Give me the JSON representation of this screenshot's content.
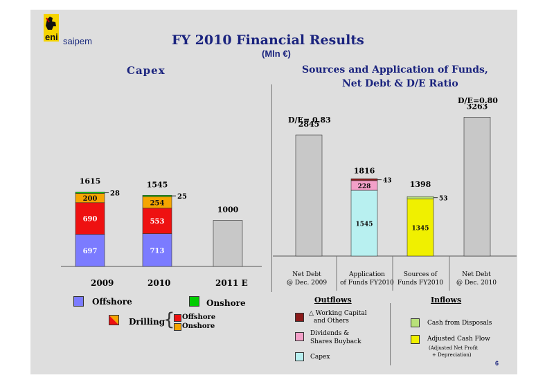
{
  "logo": {
    "brand": "eni",
    "sub": "saipem"
  },
  "slide": {
    "title": "FY 2010 Financial Results",
    "subtitle": "(Mln €)",
    "page_number": "6"
  },
  "colors": {
    "offshore_eng": "#7b7bff",
    "onshore_eng": "#00cc00",
    "drilling_offshore": "#ee1111",
    "drilling_onshore": "#f5a500",
    "grey_bar": "#c8c8c8",
    "working_capital": "#8b1a1a",
    "dividends": "#f3a0c8",
    "capex": "#b8f0f0",
    "cash_disposals": "#b8e07a",
    "cash_flow": "#f0f000",
    "title": "#1a237e"
  },
  "left": {
    "heading": "Capex",
    "legend": {
      "offshore": "Offshore",
      "onshore": "Onshore",
      "drilling": "Drilling",
      "drilling_offshore": "Offshore",
      "drilling_onshore": "Onshore"
    }
  },
  "right": {
    "heading_line1": "Sources and Application of Funds,",
    "heading_line2": "Net Debt & D/E Ratio",
    "ratio_2009": "D/E= 0.83",
    "ratio_2010": "D/E=0.80",
    "outflows_title": "Outflows",
    "inflows_title": "Inflows",
    "outflows": {
      "working_capital": "△ Working Capital",
      "working_capital_2": "and Others",
      "dividends": "Dividends &",
      "dividends_2": "Shares Buyback",
      "capex": "Capex"
    },
    "inflows": {
      "disposals": "Cash from Disposals",
      "cash_flow": "Adjusted Cash Flow",
      "cash_flow_note_1": "(Adjusted Net Profit",
      "cash_flow_note_2": "+ Depreciation)"
    }
  },
  "chart_data": [
    {
      "type": "bar",
      "title": "Capex",
      "categories": [
        "2009",
        "2010",
        "2011 E"
      ],
      "totals": [
        1615,
        1545,
        1000
      ],
      "series": [
        {
          "name": "Offshore",
          "values": [
            697,
            713,
            null
          ]
        },
        {
          "name": "Drilling Offshore",
          "values": [
            690,
            553,
            null
          ]
        },
        {
          "name": "Drilling Onshore",
          "values": [
            200,
            254,
            null
          ]
        },
        {
          "name": "Onshore",
          "values": [
            28,
            25,
            null
          ]
        }
      ],
      "ylim": [
        0,
        1700
      ]
    },
    {
      "type": "bar",
      "title": "Sources and Application of Funds, Net Debt & D/E Ratio",
      "categories": [
        "Net Debt\n@ Dec. 2009",
        "Application\nof Funds FY2010",
        "Sources of\nFunds FY2010",
        "Net Debt\n@ Dec. 2010"
      ],
      "totals": [
        2845,
        1816,
        1398,
        3263
      ],
      "series": [
        {
          "name": "Capex",
          "values": [
            null,
            1545,
            null,
            null
          ]
        },
        {
          "name": "Dividends & Shares Buyback",
          "values": [
            null,
            228,
            null,
            null
          ]
        },
        {
          "name": "Working Capital and Others",
          "values": [
            null,
            43,
            null,
            null
          ]
        },
        {
          "name": "Adjusted Cash Flow",
          "values": [
            null,
            null,
            1345,
            null
          ]
        },
        {
          "name": "Cash from Disposals",
          "values": [
            null,
            null,
            53,
            null
          ]
        }
      ],
      "de_ratio": {
        "2009": 0.83,
        "2010": 0.8
      },
      "ylim": [
        0,
        3500
      ]
    }
  ]
}
